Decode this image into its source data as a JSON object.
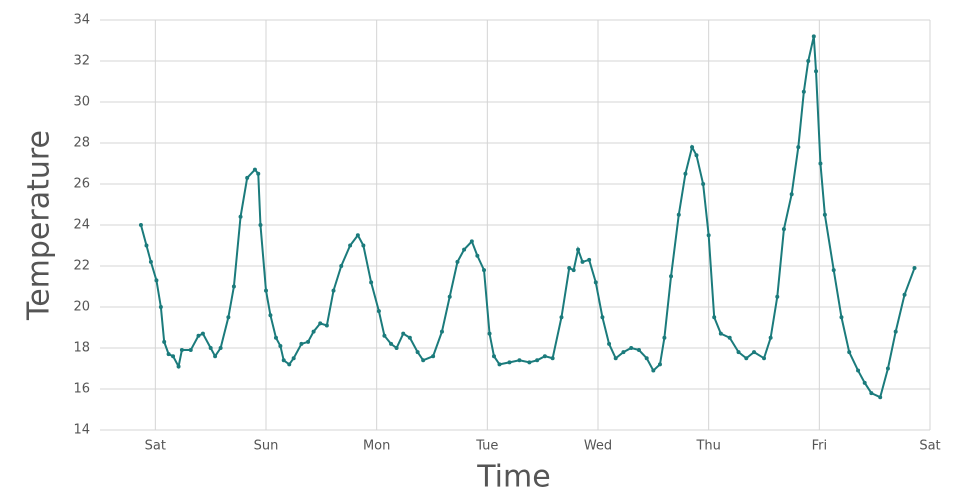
{
  "chart_data": {
    "type": "line",
    "xlabel": "Time",
    "ylabel": "Temperature",
    "x": [
      -0.13,
      -0.08,
      -0.04,
      0.01,
      0.05,
      0.08,
      0.12,
      0.16,
      0.21,
      0.24,
      0.32,
      0.39,
      0.43,
      0.5,
      0.54,
      0.59,
      0.66,
      0.71,
      0.77,
      0.83,
      0.9,
      0.93,
      0.95,
      1.0,
      1.04,
      1.09,
      1.13,
      1.16,
      1.21,
      1.25,
      1.32,
      1.38,
      1.43,
      1.49,
      1.55,
      1.61,
      1.68,
      1.76,
      1.83,
      1.88,
      1.95,
      2.02,
      2.07,
      2.13,
      2.18,
      2.24,
      2.3,
      2.37,
      2.42,
      2.51,
      2.59,
      2.66,
      2.73,
      2.79,
      2.86,
      2.91,
      2.97,
      3.02,
      3.06,
      3.11,
      3.2,
      3.29,
      3.38,
      3.45,
      3.52,
      3.59,
      3.67,
      3.74,
      3.78,
      3.82,
      3.86,
      3.92,
      3.98,
      4.04,
      4.1,
      4.16,
      4.23,
      4.3,
      4.37,
      4.44,
      4.5,
      4.56,
      4.6,
      4.66,
      4.73,
      4.79,
      4.85,
      4.89,
      4.95,
      5.0,
      5.05,
      5.11,
      5.19,
      5.27,
      5.34,
      5.41,
      5.5,
      5.56,
      5.62,
      5.68,
      5.75,
      5.81,
      5.86,
      5.9,
      5.95,
      5.97,
      6.01,
      6.05,
      6.13,
      6.2,
      6.27,
      6.35,
      6.41,
      6.47,
      6.55,
      6.62,
      6.69,
      6.77,
      6.86
    ],
    "series": [
      {
        "name": "Temperature",
        "color": "#1b7b7c",
        "values": [
          24,
          23,
          22.2,
          21.3,
          20,
          18.3,
          17.7,
          17.6,
          17.1,
          17.9,
          17.9,
          18.6,
          18.7,
          18,
          17.6,
          18,
          19.5,
          21,
          24.4,
          26.3,
          26.7,
          26.5,
          24,
          20.8,
          19.6,
          18.5,
          18.1,
          17.4,
          17.2,
          17.5,
          18.2,
          18.3,
          18.8,
          19.2,
          19.1,
          20.8,
          22,
          23,
          23.5,
          23,
          21.2,
          19.8,
          18.6,
          18.2,
          18,
          18.7,
          18.5,
          17.8,
          17.4,
          17.6,
          18.8,
          20.5,
          22.2,
          22.8,
          23.2,
          22.5,
          21.8,
          18.7,
          17.6,
          17.2,
          17.3,
          17.4,
          17.3,
          17.4,
          17.6,
          17.5,
          19.5,
          21.9,
          21.8,
          22.8,
          22.2,
          22.3,
          21.2,
          19.5,
          18.2,
          17.5,
          17.8,
          18,
          17.9,
          17.5,
          16.9,
          17.2,
          18.5,
          21.5,
          24.5,
          26.5,
          27.8,
          27.4,
          26,
          23.5,
          19.5,
          18.7,
          18.5,
          17.8,
          17.5,
          17.8,
          17.5,
          18.5,
          20.5,
          23.8,
          25.5,
          27.8,
          30.5,
          32,
          33.2,
          31.5,
          27,
          24.5,
          21.8,
          19.5,
          17.8,
          16.9,
          16.3,
          15.8,
          15.6,
          17,
          18.8,
          20.6,
          21.9
        ]
      }
    ],
    "xlim": [
      -0.5,
      7
    ],
    "xticks": [
      {
        "value": 0,
        "label": "Sat"
      },
      {
        "value": 1,
        "label": "Sun"
      },
      {
        "value": 2,
        "label": "Mon"
      },
      {
        "value": 3,
        "label": "Tue"
      },
      {
        "value": 4,
        "label": "Wed"
      },
      {
        "value": 5,
        "label": "Thu"
      },
      {
        "value": 6,
        "label": "Fri"
      },
      {
        "value": 7,
        "label": "Sat"
      }
    ],
    "ylim": [
      14,
      34
    ],
    "yticks": [
      14,
      16,
      18,
      20,
      22,
      24,
      26,
      28,
      30,
      32,
      34
    ],
    "grid": true
  }
}
